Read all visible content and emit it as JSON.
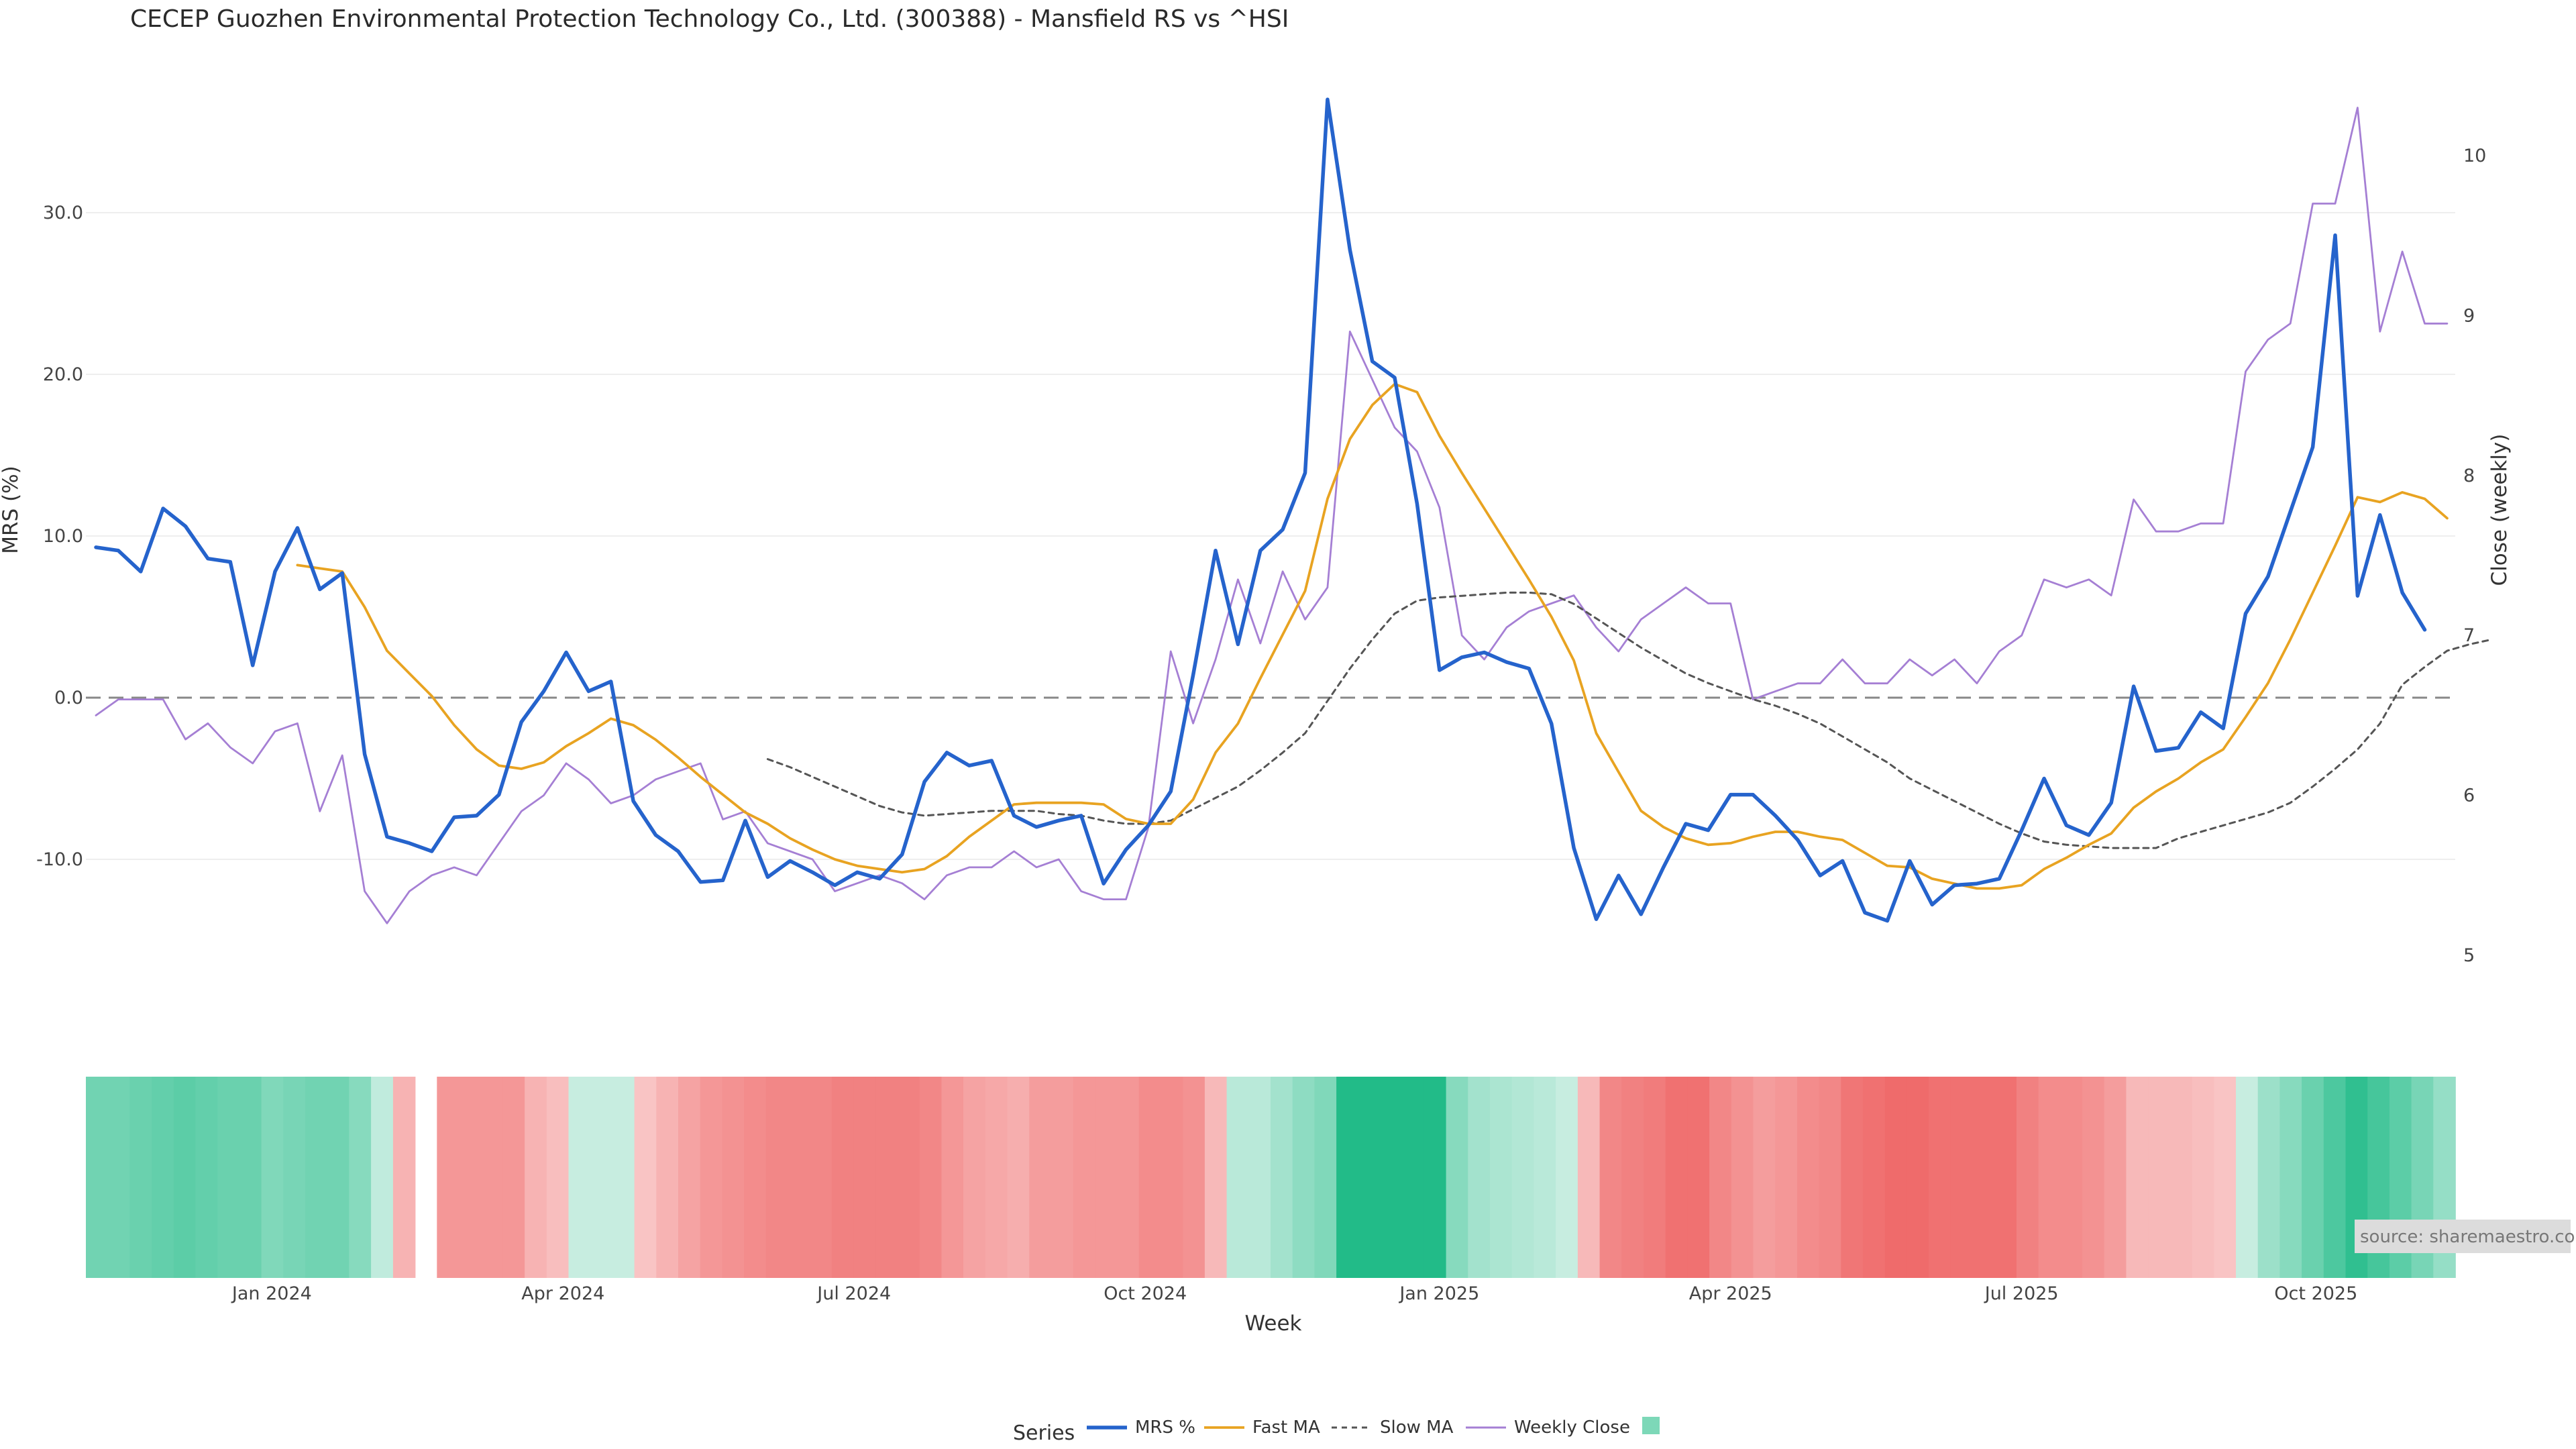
{
  "title": "CECEP Guozhen Environmental Protection Technology Co., Ltd. (300388) - Mansfield RS vs ^HSI",
  "source": "source: sharemaestro.com",
  "colors": {
    "mrs": "#2563cc",
    "fast": "#e8a321",
    "slow": "#555555",
    "close": "#a57fd4",
    "zero": "#888888",
    "grid": "#eeeeee",
    "legend_swatch": "#7dd8b8"
  },
  "chart_data": {
    "type": "line",
    "xlabel": "Week",
    "ylabel_left": "MRS (%)",
    "ylabel_right": "Close (weekly)",
    "x_ticks": [
      "Jan 2024",
      "Apr 2024",
      "Jul 2024",
      "Oct 2024",
      "Jan 2025",
      "Apr 2025",
      "Jul 2025",
      "Oct 2025"
    ],
    "x_tick_weeks": [
      7.86,
      20.86,
      33.86,
      46.86,
      60.0,
      73.0,
      86.0,
      99.14
    ],
    "y_left_ticks": [
      "30.0",
      "20.0",
      "10.0",
      "0.0",
      "-10.0"
    ],
    "y_left_tick_values": [
      30,
      20,
      10,
      0,
      -10
    ],
    "y_left_range": [
      -16.5,
      37.6
    ],
    "y_right_ticks": [
      "10",
      "9",
      "8",
      "7",
      "6",
      "5"
    ],
    "y_right_tick_values": [
      10,
      9,
      8,
      7,
      6,
      5
    ],
    "y_right_range": [
      4.85,
      10.35
    ],
    "zero_line": 0,
    "legend_title": "Series",
    "legend_position": "bottom-center",
    "series": [
      {
        "name": "MRS %",
        "values": [
          9.3,
          9.1,
          7.8,
          11.7,
          10.6,
          8.6,
          8.4,
          2.0,
          7.8,
          10.5,
          6.7,
          7.7,
          -3.5,
          -8.6,
          -9.0,
          -9.5,
          -7.4,
          -7.3,
          -6.0,
          -1.5,
          0.4,
          2.8,
          0.4,
          1.0,
          -6.4,
          -8.5,
          -9.5,
          -11.4,
          -11.3,
          -7.6,
          -11.1,
          -10.1,
          -10.8,
          -11.6,
          -10.8,
          -11.2,
          -9.7,
          -5.2,
          -3.4,
          -4.2,
          -3.9,
          -7.3,
          -8.0,
          -7.6,
          -7.3,
          -11.5,
          -9.4,
          -7.9,
          -5.8,
          1.4,
          9.1,
          3.3,
          9.1,
          10.4,
          13.9,
          37.0,
          27.7,
          20.8,
          19.8,
          12.0,
          1.7,
          2.5,
          2.8,
          2.2,
          1.8,
          -1.6,
          -9.3,
          -13.7,
          -11.0,
          -13.4,
          -10.5,
          -7.8,
          -8.2,
          -6.0,
          -6.0,
          -7.3,
          -8.8,
          -11.0,
          -10.1,
          -13.3,
          -13.8,
          -10.1,
          -12.8,
          -11.6,
          -11.5,
          -11.2,
          -8.2,
          -5.0,
          -7.9,
          -8.5,
          -6.5,
          0.7,
          -3.3,
          -3.1,
          -0.9,
          -1.9,
          5.2,
          7.5,
          11.5,
          15.5,
          28.6,
          6.3,
          11.3,
          6.5,
          4.2
        ]
      },
      {
        "name": "Fast MA",
        "start_week": 9,
        "values": [
          8.2,
          8.0,
          7.8,
          5.6,
          2.9,
          1.5,
          0.1,
          -1.7,
          -3.2,
          -4.2,
          -4.4,
          -4.0,
          -3.0,
          -2.2,
          -1.3,
          -1.7,
          -2.6,
          -3.7,
          -4.9,
          -6.0,
          -7.1,
          -7.8,
          -8.7,
          -9.4,
          -10.0,
          -10.4,
          -10.6,
          -10.8,
          -10.6,
          -9.8,
          -8.6,
          -7.6,
          -6.6,
          -6.5,
          -6.5,
          -6.5,
          -6.6,
          -7.5,
          -7.8,
          -7.8,
          -6.3,
          -3.4,
          -1.6,
          1.2,
          3.9,
          6.6,
          12.3,
          16.0,
          18.1,
          19.4,
          18.9,
          16.2,
          13.9,
          11.7,
          9.5,
          7.3,
          5.0,
          2.3,
          -2.2,
          -4.6,
          -7.0,
          -8.0,
          -8.7,
          -9.1,
          -9.0,
          -8.6,
          -8.3,
          -8.3,
          -8.6,
          -8.8,
          -9.6,
          -10.4,
          -10.5,
          -11.2,
          -11.5,
          -11.8,
          -11.8,
          -11.6,
          -10.6,
          -9.9,
          -9.1,
          -8.4,
          -6.8,
          -5.8,
          -5.0,
          -4.0,
          -3.2,
          -1.2,
          0.9,
          3.6,
          6.5,
          9.4,
          12.4,
          12.1,
          12.7,
          12.3,
          11.1
        ]
      },
      {
        "name": "Slow MA",
        "start_week": 30,
        "values": [
          -3.8,
          -4.3,
          -4.9,
          -5.5,
          -6.1,
          -6.7,
          -7.1,
          -7.3,
          -7.2,
          -7.1,
          -7.0,
          -7.0,
          -7.0,
          -7.2,
          -7.3,
          -7.6,
          -7.8,
          -7.8,
          -7.6,
          -6.9,
          -6.2,
          -5.5,
          -4.5,
          -3.4,
          -2.2,
          -0.2,
          1.8,
          3.6,
          5.2,
          6.0,
          6.2,
          6.3,
          6.4,
          6.5,
          6.5,
          6.4,
          5.8,
          4.9,
          4.0,
          3.1,
          2.3,
          1.5,
          0.9,
          0.4,
          -0.1,
          -0.5,
          -1.0,
          -1.6,
          -2.4,
          -3.2,
          -4.0,
          -5.0,
          -5.7,
          -6.4,
          -7.1,
          -7.8,
          -8.4,
          -8.9,
          -9.1,
          -9.2,
          -9.3,
          -9.3,
          -9.3,
          -8.7,
          -8.3,
          -7.9,
          -7.5,
          -7.1,
          -6.5,
          -5.5,
          -4.4,
          -3.2,
          -1.6,
          0.8,
          1.9,
          2.9,
          3.3,
          3.6
        ]
      },
      {
        "name": "Weekly Close",
        "axis": "right",
        "values": [
          6.5,
          6.6,
          6.6,
          6.6,
          6.35,
          6.45,
          6.3,
          6.2,
          6.4,
          6.45,
          5.9,
          6.25,
          5.4,
          5.2,
          5.4,
          5.5,
          5.55,
          5.5,
          5.7,
          5.9,
          6.0,
          6.2,
          6.1,
          5.95,
          6.0,
          6.1,
          6.15,
          6.2,
          5.85,
          5.9,
          5.7,
          5.65,
          5.6,
          5.4,
          5.45,
          5.5,
          5.45,
          5.35,
          5.5,
          5.55,
          5.55,
          5.65,
          5.55,
          5.6,
          5.4,
          5.35,
          5.35,
          5.8,
          6.9,
          6.45,
          6.85,
          7.35,
          6.95,
          7.4,
          7.1,
          7.3,
          8.9,
          8.6,
          8.3,
          8.15,
          7.8,
          7.0,
          6.85,
          7.05,
          7.15,
          7.2,
          7.25,
          7.05,
          6.9,
          7.1,
          7.2,
          7.3,
          7.2,
          7.2,
          6.6,
          6.65,
          6.7,
          6.7,
          6.85,
          6.7,
          6.7,
          6.85,
          6.75,
          6.85,
          6.7,
          6.9,
          7.0,
          7.35,
          7.3,
          7.35,
          7.25,
          7.85,
          7.65,
          7.65,
          7.7,
          7.7,
          8.65,
          8.85,
          8.95,
          9.7,
          9.7,
          10.3,
          8.9,
          9.4,
          8.95,
          8.95
        ]
      }
    ],
    "heatmap_strip": {
      "note": "weekly RS regime band; negative = red, positive = green, null = gap",
      "values": [
        1.5,
        1.5,
        1.6,
        1.7,
        1.8,
        1.7,
        1.6,
        1.6,
        1.3,
        1.4,
        1.5,
        1.5,
        1.2,
        0.4,
        -0.7,
        null,
        -1.2,
        -1.2,
        -1.2,
        -1.2,
        -0.7,
        -0.5,
        0.3,
        0.3,
        0.3,
        -0.4,
        -0.7,
        -1.0,
        -1.2,
        -1.3,
        -1.4,
        -1.5,
        -1.5,
        -1.5,
        -1.6,
        -1.6,
        -1.6,
        -1.6,
        -1.5,
        -1.2,
        -1.0,
        -0.9,
        -0.8,
        -1.1,
        -1.1,
        -1.2,
        -1.2,
        -1.2,
        -1.4,
        -1.4,
        -1.3,
        -0.6,
        0.5,
        0.5,
        0.8,
        1.1,
        1.3,
        2.6,
        2.6,
        2.6,
        2.6,
        2.6,
        1.2,
        0.8,
        0.7,
        0.6,
        0.5,
        0.3,
        -0.6,
        -1.5,
        -1.6,
        -1.7,
        -1.9,
        -1.9,
        -1.5,
        -1.3,
        -1.1,
        -1.2,
        -1.4,
        -1.5,
        -1.8,
        -1.9,
        -2.0,
        -2.0,
        -1.9,
        -1.9,
        -1.9,
        -1.9,
        -1.6,
        -1.4,
        -1.4,
        -1.3,
        -1.1,
        -0.6,
        -0.6,
        -0.6,
        -0.5,
        -0.4,
        0.3,
        0.9,
        1.2,
        1.6,
        2.0,
        2.4,
        2.1,
        1.8,
        1.4,
        1.0
      ]
    }
  }
}
